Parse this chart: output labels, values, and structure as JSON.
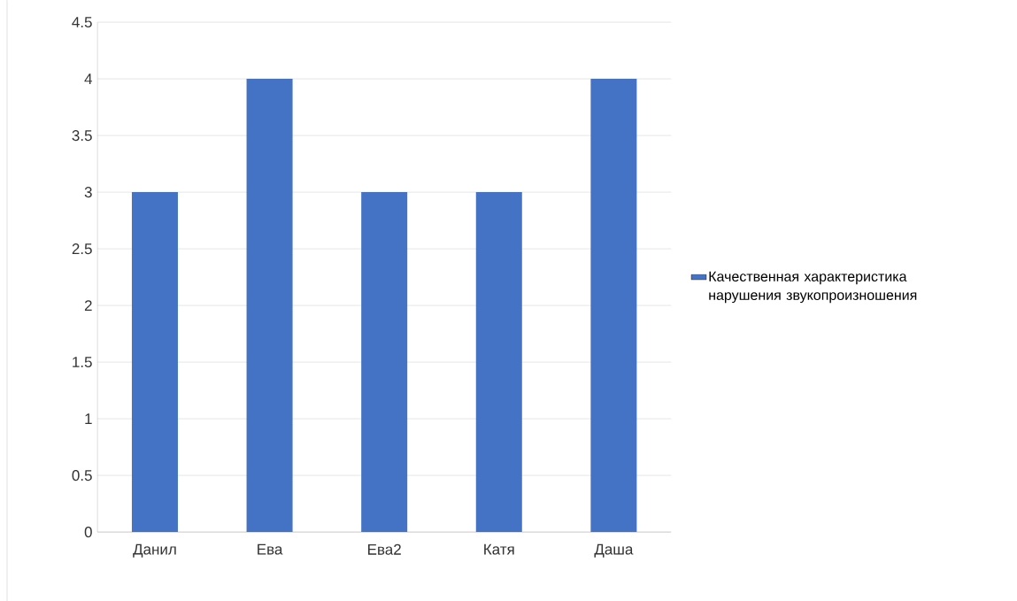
{
  "chart_data": {
    "type": "bar",
    "categories": [
      "Данил",
      "Ева",
      "Ева2",
      "Катя",
      "Даша"
    ],
    "series": [
      {
        "name": "Качественная характеристика нарушения звукопроизношения",
        "color": "#4472c4",
        "values": [
          3,
          4,
          3,
          3,
          4
        ]
      }
    ],
    "ylim": [
      0,
      4.5
    ],
    "yticks": [
      0,
      0.5,
      1,
      1.5,
      2,
      2.5,
      3,
      3.5,
      4,
      4.5
    ],
    "grid": "y",
    "legend": "right"
  }
}
